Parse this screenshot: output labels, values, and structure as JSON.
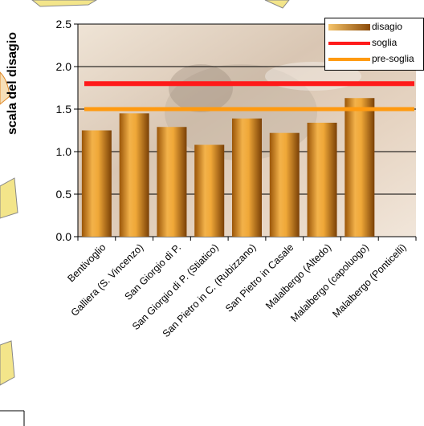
{
  "chart_data": {
    "type": "bar",
    "ylabel": "scala del disagio",
    "xlabel": "",
    "ylim": [
      0,
      2.5
    ],
    "yticks": [
      "0.0",
      "0.5",
      "1.0",
      "1.5",
      "2.0",
      "2.5"
    ],
    "categories": [
      "Bentivoglio",
      "Galliera (S. Vincenzo)",
      "San Giorgio di P.",
      "San Giorgio di P. (Stiatico)",
      "San Pietro in C. (Rubizzano)",
      "San Pietro in Casale",
      "Malalbergo (Altedo)",
      "Malalbergo (capoluogo)",
      "Malalbergo (Ponticelli)"
    ],
    "series": [
      {
        "name": "disagio",
        "type": "bar",
        "values": [
          1.25,
          1.45,
          1.29,
          1.08,
          1.39,
          1.22,
          1.34,
          1.63,
          null
        ]
      },
      {
        "name": "soglia",
        "type": "line",
        "value": 1.8
      },
      {
        "name": "pre-soglia",
        "type": "line",
        "value": 1.5
      }
    ],
    "legend_position": "top-right",
    "grid": true,
    "colors": {
      "bar": "#d98a1a",
      "bar_light": "#f6c46a",
      "bar_dark": "#8a4a08",
      "soglia": "#ff1a1a",
      "pre_soglia": "#ff9a10",
      "grid": "#000000",
      "plot_bg": "#e8d9c8"
    }
  },
  "legend": {
    "disagio": "disagio",
    "soglia": "soglia",
    "pre_soglia": "pre-soglia"
  }
}
